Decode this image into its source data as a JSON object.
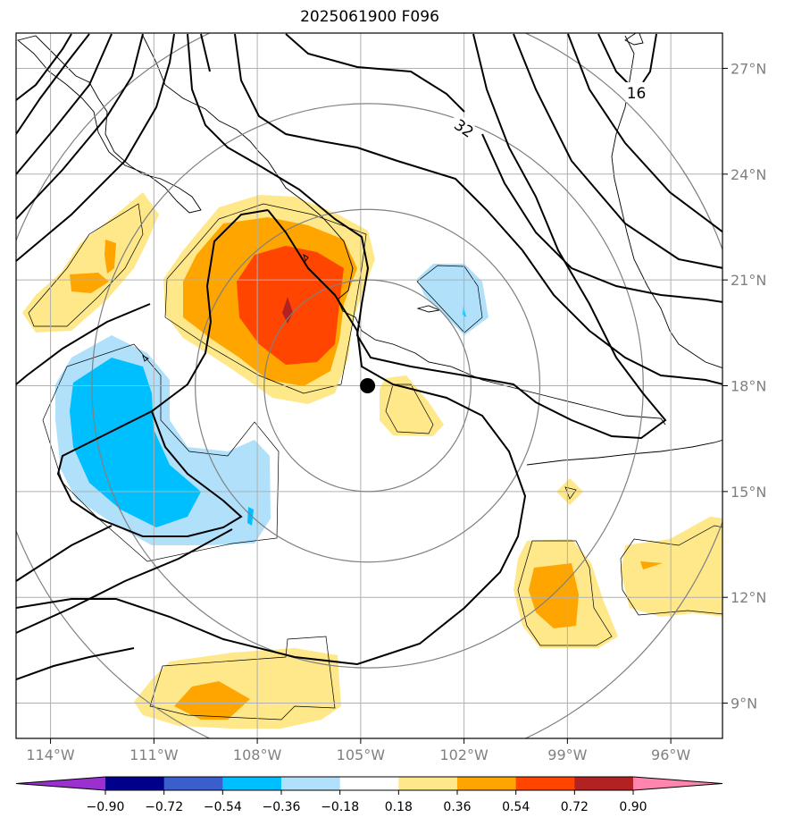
{
  "title": "2025061900 F096",
  "map": {
    "lon_range": [
      -115.0,
      -94.5
    ],
    "lat_range": [
      8.0,
      28.0
    ],
    "lon_ticks": [
      {
        "value": -114,
        "label": "114°W"
      },
      {
        "value": -111,
        "label": "111°W"
      },
      {
        "value": -108,
        "label": "108°W"
      },
      {
        "value": -105,
        "label": "105°W"
      },
      {
        "value": -102,
        "label": "102°W"
      },
      {
        "value": -99,
        "label": "99°W"
      },
      {
        "value": -96,
        "label": "96°W"
      }
    ],
    "lat_ticks": [
      {
        "value": 27,
        "label": "27°N"
      },
      {
        "value": 24,
        "label": "24°N"
      },
      {
        "value": 21,
        "label": "21°N"
      },
      {
        "value": 18,
        "label": "18°N"
      },
      {
        "value": 15,
        "label": "15°N"
      },
      {
        "value": 12,
        "label": "12°N"
      },
      {
        "value": 9,
        "label": "9°N"
      }
    ],
    "center": {
      "lon": -104.8,
      "lat": 18.0
    },
    "range_rings_deg": [
      3,
      5,
      8,
      11
    ],
    "contour_labels": [
      {
        "text": "32",
        "lon": -102.0,
        "lat": 25.3
      },
      {
        "text": "16",
        "lon": -97.0,
        "lat": 26.3
      }
    ],
    "colors": {
      "land_outline": "#000000",
      "grid": "#b0b0b0",
      "ring": "#808080",
      "contour": "#000000"
    }
  },
  "colorbar": {
    "ticks": [
      "−0.90",
      "−0.72",
      "−0.54",
      "−0.36",
      "−0.18",
      "0.18",
      "0.36",
      "0.54",
      "0.72",
      "0.90"
    ],
    "colors": [
      "#9b30d0",
      "#00008b",
      "#3a5fcd",
      "#00bfff",
      "#b0e0fa",
      "#ffffff",
      "#ffe88a",
      "#ffa500",
      "#ff4500",
      "#b22222",
      "#ff85b0"
    ]
  }
}
